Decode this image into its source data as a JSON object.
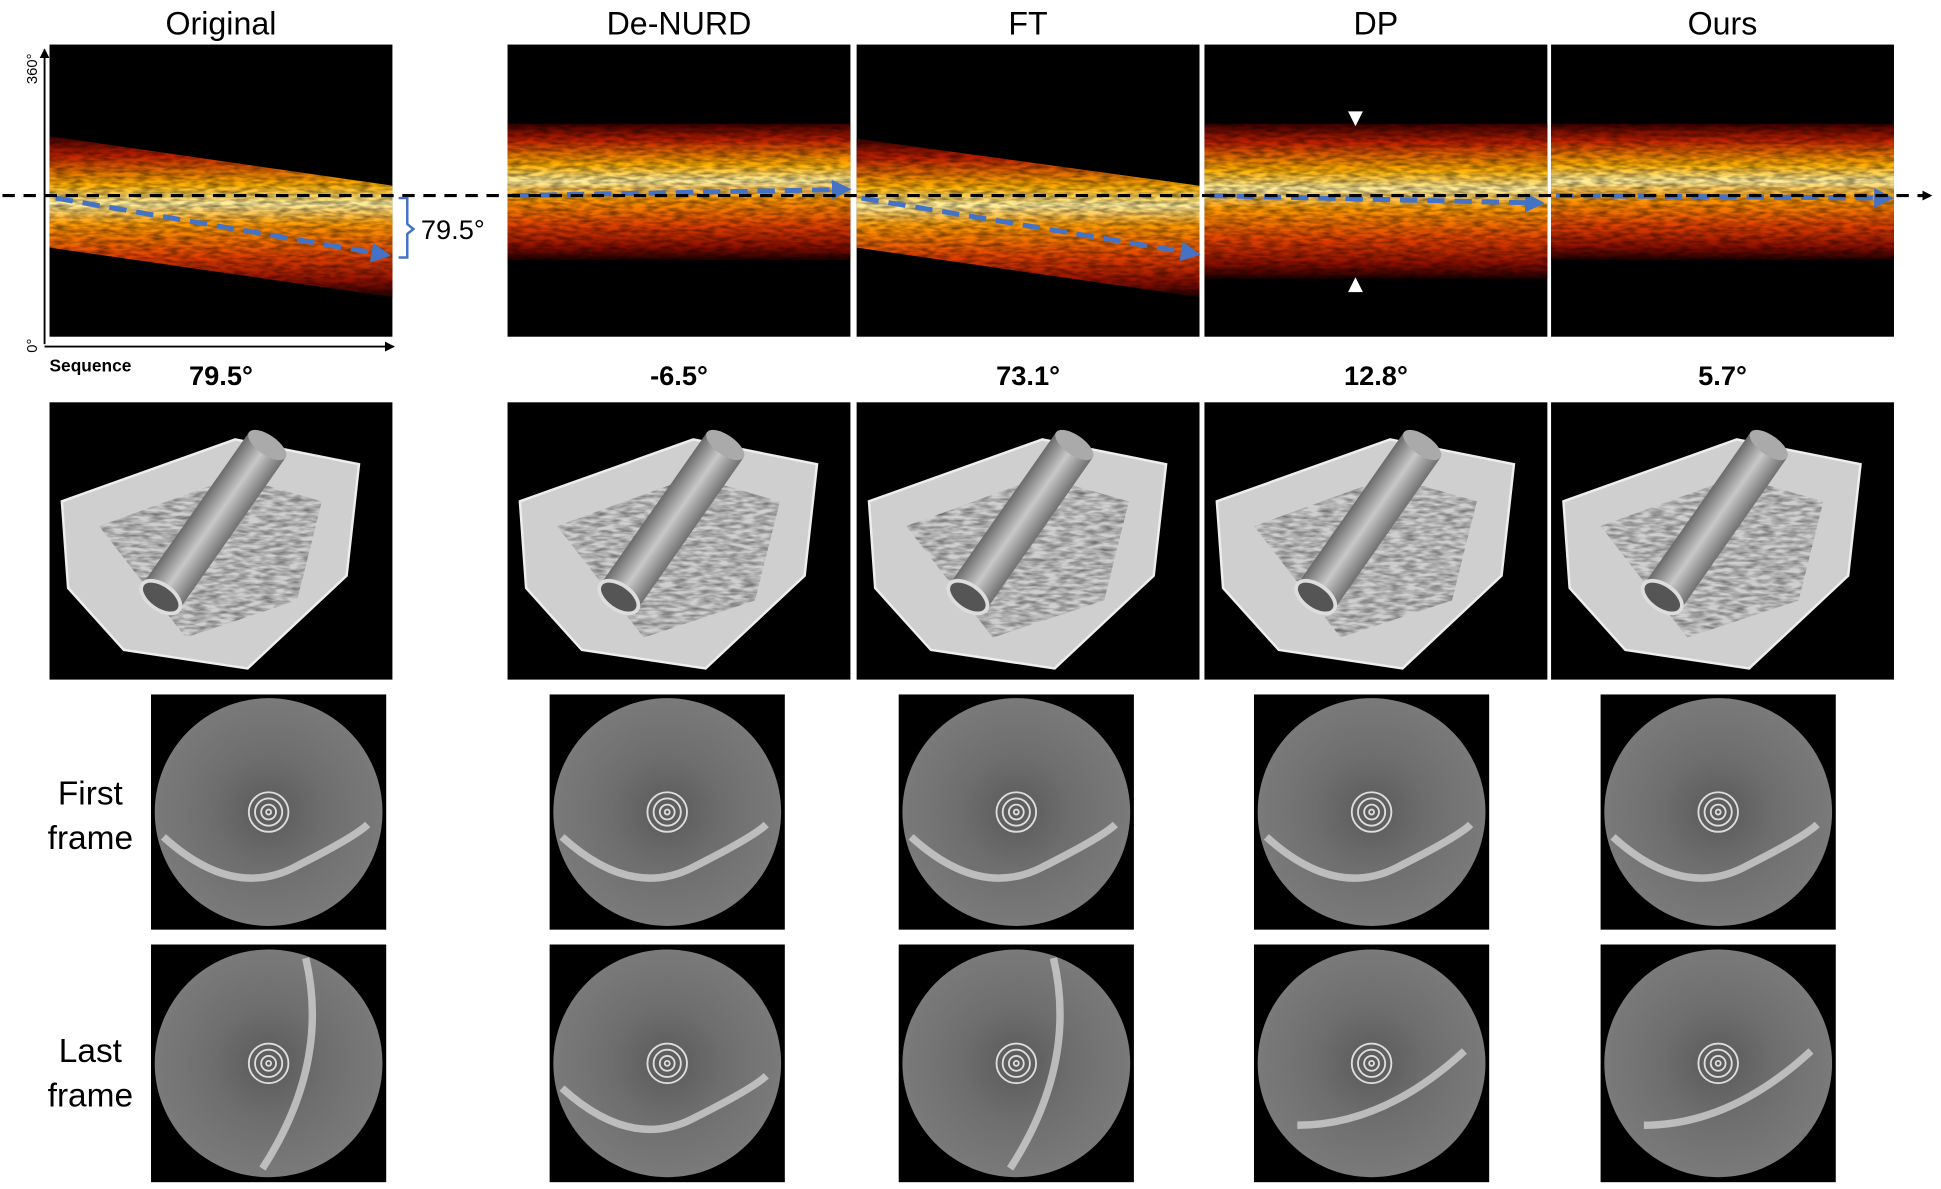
{
  "columns": [
    {
      "title": "Original",
      "angle": "79.5°"
    },
    {
      "title": "De-NURD",
      "angle": "-6.5°"
    },
    {
      "title": "FT",
      "angle": "73.1°"
    },
    {
      "title": "DP",
      "angle": "12.8°"
    },
    {
      "title": "Ours",
      "angle": "5.7°"
    }
  ],
  "axis": {
    "top": "360°",
    "bottom": "0°",
    "x": "Sequence"
  },
  "bracket_label": "79.5°",
  "row_labels": [
    [
      "First",
      "frame"
    ],
    [
      "Last",
      "frame"
    ]
  ]
}
